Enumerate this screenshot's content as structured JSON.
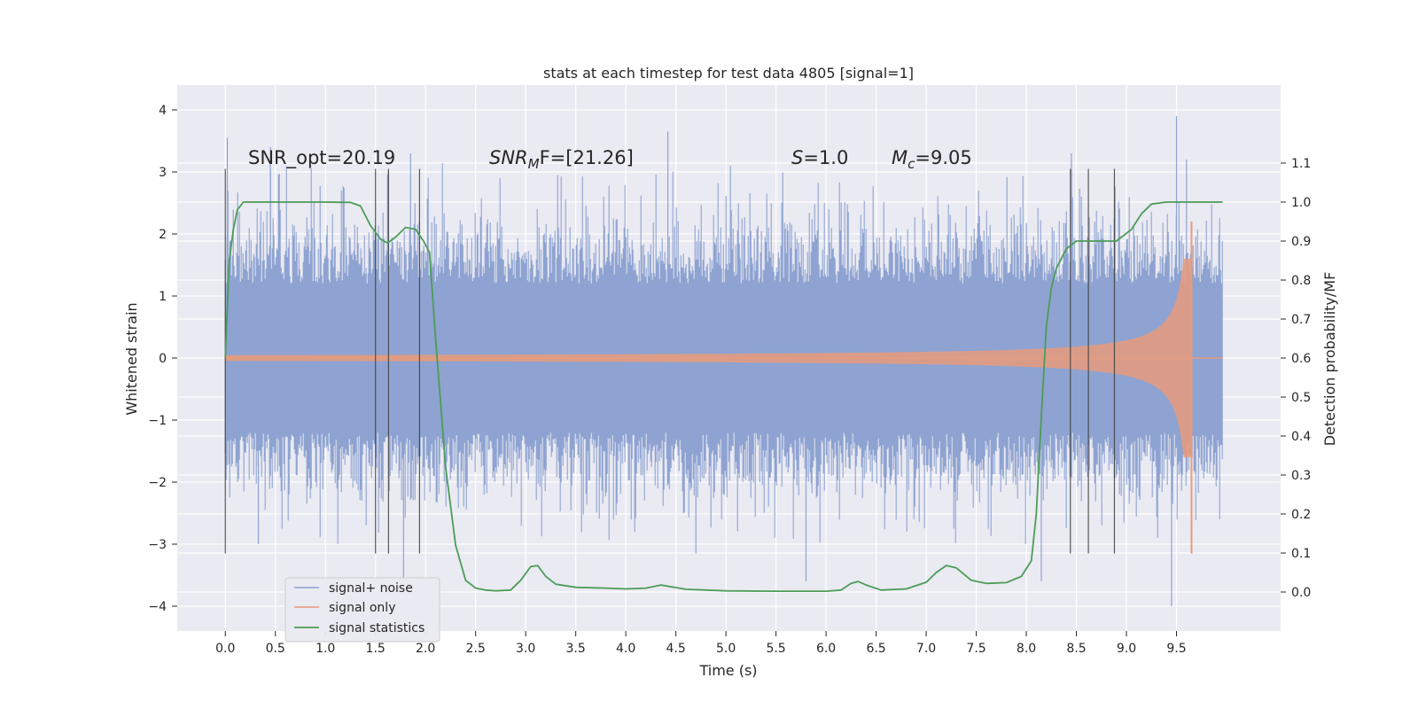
{
  "chart_data": {
    "type": "line",
    "title": "stats at each timestep for test data 4805 [signal=1]",
    "xlabel": "Time (s)",
    "ylabel": "Whitened strain",
    "y2label": "Detection probability/MF",
    "xlim": [
      -0.48,
      10.54
    ],
    "ylim": [
      -4.4,
      4.4
    ],
    "y2lim": [
      -0.1,
      1.3
    ],
    "x_ticks": [
      "0.0",
      "0.5",
      "1.0",
      "1.5",
      "2.0",
      "2.5",
      "3.0",
      "3.5",
      "4.0",
      "4.5",
      "5.0",
      "5.5",
      "6.0",
      "6.5",
      "7.0",
      "7.5",
      "8.0",
      "8.5",
      "9.0",
      "9.5"
    ],
    "y_ticks": [
      "4",
      "3",
      "2",
      "1",
      "0",
      "−1",
      "−2",
      "−3",
      "−4"
    ],
    "y2_ticks": [
      "1.1",
      "1.0",
      "0.9",
      "0.8",
      "0.7",
      "0.6",
      "0.5",
      "0.4",
      "0.3",
      "0.2",
      "0.1",
      "0.0"
    ],
    "grid": true,
    "legend_position": "lower-left",
    "annotations": {
      "snr_opt": "SNR_opt=20.19",
      "snr_mf_base": "SNR",
      "snr_mf_sub": "M",
      "snr_mf_rest": "F=[21.26]",
      "s_sym": "S",
      "s_rest": "=1.0",
      "mc_sym": "M",
      "mc_sub": "c",
      "mc_rest": "=9.05"
    },
    "series": [
      {
        "name": "signal+ noise",
        "color": "#8ea3d1",
        "envelope": {
          "x_range": [
            0.0,
            9.96
          ],
          "core_amplitude": 1.2,
          "typical_peak_positive": 2.4,
          "typical_peak_negative": -2.2,
          "max": 3.9,
          "min": -4.0
        }
      },
      {
        "name": "signal only",
        "color": "#e79b7c",
        "chirp": {
          "t_merger": 9.65,
          "amplitude_early": 0.02,
          "amplitude_at_8": 0.15,
          "amplitude_at_9": 0.45,
          "peak_max": 2.2,
          "peak_min": -3.15
        }
      },
      {
        "name": "signal statistics",
        "color": "#4c9c57",
        "x": [
          0.0,
          0.04,
          0.08,
          0.12,
          0.18,
          0.3,
          0.6,
          1.0,
          1.25,
          1.35,
          1.45,
          1.55,
          1.62,
          1.7,
          1.8,
          1.9,
          1.98,
          2.04,
          2.1,
          2.2,
          2.3,
          2.4,
          2.5,
          2.6,
          2.7,
          2.85,
          2.95,
          3.05,
          3.12,
          3.2,
          3.3,
          3.5,
          3.8,
          4.0,
          4.2,
          4.35,
          4.6,
          5.0,
          5.5,
          6.0,
          6.15,
          6.25,
          6.32,
          6.4,
          6.55,
          6.8,
          7.0,
          7.1,
          7.2,
          7.3,
          7.45,
          7.6,
          7.8,
          7.95,
          8.05,
          8.1,
          8.15,
          8.2,
          8.25,
          8.3,
          8.4,
          8.5,
          8.7,
          8.9,
          9.05,
          9.15,
          9.25,
          9.4,
          9.6,
          9.9,
          9.96
        ],
        "y": [
          0.6,
          0.85,
          0.93,
          0.98,
          1.0,
          1.0,
          1.0,
          1.0,
          0.999,
          0.99,
          0.94,
          0.905,
          0.895,
          0.91,
          0.935,
          0.93,
          0.9,
          0.87,
          0.65,
          0.32,
          0.12,
          0.03,
          0.01,
          0.005,
          0.003,
          0.005,
          0.03,
          0.065,
          0.068,
          0.04,
          0.02,
          0.012,
          0.01,
          0.008,
          0.01,
          0.018,
          0.007,
          0.003,
          0.002,
          0.002,
          0.005,
          0.022,
          0.027,
          0.018,
          0.005,
          0.008,
          0.025,
          0.05,
          0.068,
          0.062,
          0.03,
          0.022,
          0.024,
          0.04,
          0.08,
          0.2,
          0.45,
          0.68,
          0.78,
          0.83,
          0.88,
          0.9,
          0.9,
          0.9,
          0.93,
          0.97,
          0.995,
          1.0,
          1.0,
          1.0,
          1.0
        ]
      }
    ],
    "vlines": [
      0.0,
      1.5,
      1.63,
      1.94,
      8.44,
      8.62,
      8.88
    ],
    "vline_range": [
      -3.15,
      3.05
    ]
  }
}
